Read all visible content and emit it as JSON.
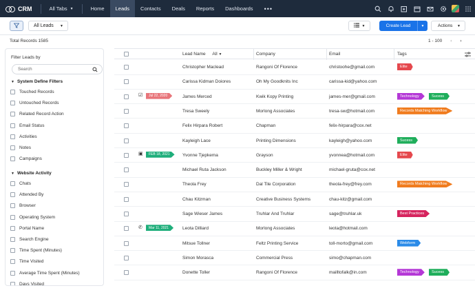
{
  "app": {
    "brand": "CRM"
  },
  "nav": {
    "all_tabs": "All Tabs",
    "items": [
      "Home",
      "Leads",
      "Contacts",
      "Deals",
      "Reports",
      "Dashboards"
    ],
    "more": "•••",
    "active": "Leads"
  },
  "toolbar": {
    "view": "All Leads",
    "create": "Create Lead",
    "actions": "Actions"
  },
  "summary": {
    "total": "Total Records 1585",
    "range": "1 - 100"
  },
  "filters": {
    "title": "Filter Leads by",
    "search_placeholder": "Search",
    "system_heading": "System Define Filters",
    "system_items": [
      "Touched Records",
      "Untouched Records",
      "Related Record Action",
      "Email Status",
      "Activities",
      "Notes",
      "Campaigns"
    ],
    "website_heading": "Website Activity",
    "website_items": [
      "Chats",
      "Attended By",
      "Browser",
      "Operating System",
      "Portal Name",
      "Search Engine",
      "Time Spent (Minutes)",
      "Time Visited",
      "Average Time Spent (Minutes)",
      "Days Visited"
    ]
  },
  "table": {
    "headers": {
      "lead_name": "Lead Name",
      "lead_filter": "All",
      "company": "Company",
      "email": "Email",
      "tags": "Tags"
    },
    "rows": [
      {
        "name": "Christopher Maclead",
        "company": "Rangoni Of Florence",
        "email": "christoohe@gmail.com",
        "tags": [
          {
            "label": "Elite",
            "color": "#e5484d"
          }
        ]
      },
      {
        "name": "Carissa Kidman Doiores",
        "company": "Oh My Goodknits Inc",
        "email": "carissa-kid@yahoo.com",
        "tags": []
      },
      {
        "name": "James Merced",
        "company": "Kwik Kopy Printing",
        "email": "james-mer@gmail.com",
        "marker": {
          "icon": "checkbox-task-icon",
          "date": "Jul 22, 2020",
          "color": "#e8757a"
        },
        "tags": [
          {
            "label": "Technology",
            "color": "#b438d6"
          },
          {
            "label": "Sucess",
            "color": "#1fae5b"
          }
        ]
      },
      {
        "name": "Tresa Sweely",
        "company": "Morlong Associates",
        "email": "tresa-sw@hotmail.com",
        "tags": [
          {
            "label": "Records Matching Workflow",
            "color": "#f07c1e"
          }
        ]
      },
      {
        "name": "Felix Hirpara Robert",
        "company": "Chapman",
        "email": "felix-hirpara@cox.net",
        "tags": []
      },
      {
        "name": "Kayleigh Lace",
        "company": "Printing Dimensions",
        "email": "kayleigh@yahoo.com",
        "tags": [
          {
            "label": "Sucess",
            "color": "#1fae5b"
          }
        ]
      },
      {
        "name": "Yvonne Tjepkema",
        "company": "Grayson",
        "email": "yvonnea@hotmail.com",
        "marker": {
          "icon": "calendar-icon",
          "date": "FEB 18, 2021",
          "color": "#1fae7b"
        },
        "tags": [
          {
            "label": "Elite",
            "color": "#e5484d"
          }
        ]
      },
      {
        "name": "Michael Ruta Jackson",
        "company": "Buckley Miller & Wright",
        "email": "michael-gruta@cox.net",
        "tags": []
      },
      {
        "name": "Theola Frey",
        "company": "Dal Tile Corporation",
        "email": "theola-frey@frey.com",
        "tags": [
          {
            "label": "Records Matching Workflow",
            "color": "#f07c1e"
          }
        ]
      },
      {
        "name": "Chau Kitzman",
        "company": "Creative Business Systems",
        "email": "chau-kitz@gmail.com",
        "tags": []
      },
      {
        "name": "Sage Wieser James",
        "company": "Truhlar And Truhlar",
        "email": "sage@truhlar.uk",
        "tags": [
          {
            "label": "Best Practices",
            "color": "#d6245e"
          }
        ]
      },
      {
        "name": "Leota Dilliard",
        "company": "Morlong Associates",
        "email": "leota@hotmail.com",
        "marker": {
          "icon": "phone-icon",
          "date": "Mar 11, 2021",
          "color": "#1fae7b"
        },
        "tags": []
      },
      {
        "name": "Mitsue Tollner",
        "company": "Feltz Printing Service",
        "email": "toll-morto@gmail.com",
        "tags": [
          {
            "label": "Webform",
            "color": "#2b8be8"
          }
        ]
      },
      {
        "name": "Simon Morasca",
        "company": "Commercial Press",
        "email": "simo@chapman.com",
        "tags": []
      },
      {
        "name": "Donette Toller",
        "company": "Rangoni Of Florence",
        "email": "mailltofalk@in.com",
        "tags": [
          {
            "label": "Technology",
            "color": "#b438d6"
          },
          {
            "label": "Sucess",
            "color": "#1fae5b"
          }
        ]
      }
    ]
  }
}
